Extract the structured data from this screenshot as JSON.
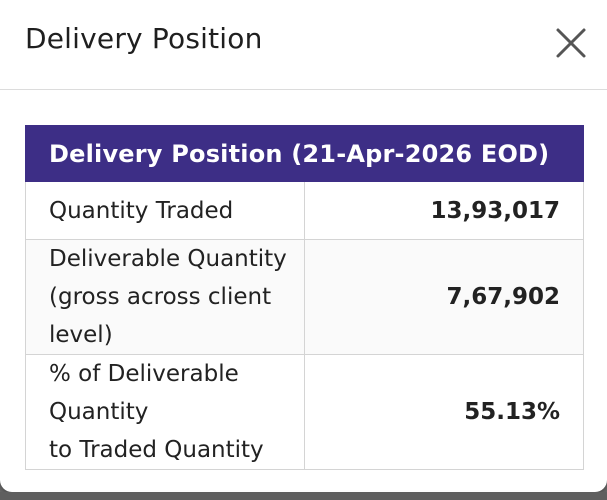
{
  "modal": {
    "title": "Delivery Position"
  },
  "table": {
    "header": "Delivery Position (21-Apr-2026 EOD)",
    "rows": [
      {
        "label_line1": "Quantity Traded",
        "label_line2": "",
        "value": "13,93,017"
      },
      {
        "label_line1": "Deliverable Quantity",
        "label_line2": "(gross across client level)",
        "value": "7,67,902"
      },
      {
        "label_line1": "% of Deliverable Quantity",
        "label_line2": "to Traded Quantity",
        "value": "55.13%"
      }
    ]
  },
  "icons": {
    "close": "close-icon"
  },
  "colors": {
    "header_bg": "#3d2e86",
    "header_text": "#ffffff",
    "border": "#d4d4d4"
  }
}
